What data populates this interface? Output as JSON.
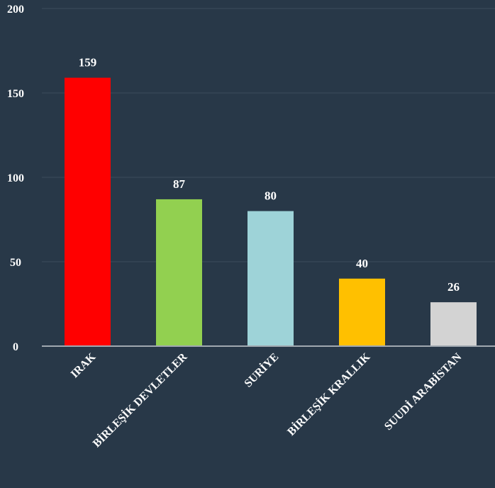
{
  "chart_data": {
    "type": "bar",
    "title": "",
    "xlabel": "",
    "ylabel": "",
    "categories": [
      "IRAK",
      "BİRLEŞİK DEVLETLER",
      "SURİYE",
      "BİRLEŞİK KRALLIK",
      "SUUDİ ARABİSTAN"
    ],
    "values": [
      159,
      87,
      80,
      40,
      26
    ],
    "data_labels": [
      "159",
      "87",
      "80",
      "40",
      "26"
    ],
    "colors": [
      "#ff0000",
      "#92d050",
      "#9ed3d8",
      "#ffc000",
      "#d3d3d3"
    ],
    "ylim": [
      0,
      200
    ],
    "yticks": [
      0,
      50,
      100,
      150,
      200
    ],
    "ytick_labels": [
      "0",
      "50",
      "100",
      "150",
      "200"
    ],
    "grid": true,
    "legend": "none"
  },
  "theme": {
    "background": "#283848",
    "gridline": "#3d4d5d",
    "axis": "#a0a8b0",
    "text": "#ffffff"
  }
}
